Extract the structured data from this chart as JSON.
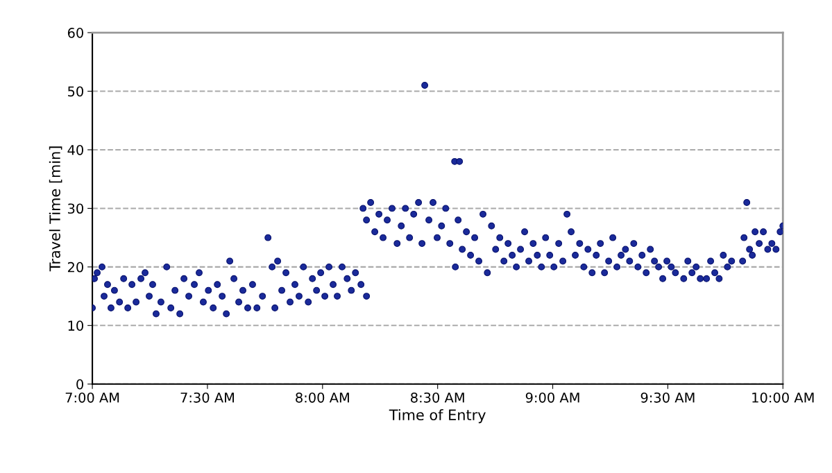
{
  "chart_data": {
    "type": "scatter",
    "xlabel": "Time of Entry",
    "ylabel": "Travel Time [min]",
    "x": [
      7.0,
      7.009,
      7.021,
      7.042,
      7.051,
      7.066,
      7.081,
      7.096,
      7.118,
      7.136,
      7.154,
      7.172,
      7.19,
      7.211,
      7.229,
      7.247,
      7.262,
      7.277,
      7.298,
      7.323,
      7.341,
      7.359,
      7.38,
      7.398,
      7.419,
      7.443,
      7.464,
      7.482,
      7.504,
      7.525,
      7.543,
      7.564,
      7.582,
      7.597,
      7.615,
      7.636,
      7.654,
      7.675,
      7.696,
      7.715,
      7.739,
      7.763,
      7.781,
      7.793,
      7.805,
      7.823,
      7.841,
      7.859,
      7.88,
      7.898,
      7.917,
      7.938,
      7.956,
      7.974,
      7.992,
      8.01,
      8.028,
      8.046,
      8.064,
      8.085,
      8.107,
      8.125,
      8.143,
      8.167,
      8.191,
      8.176,
      8.191,
      8.209,
      8.227,
      8.245,
      8.263,
      8.281,
      8.302,
      8.324,
      8.342,
      8.36,
      8.378,
      8.396,
      8.417,
      8.432,
      8.444,
      8.462,
      8.48,
      8.498,
      8.517,
      8.535,
      8.553,
      8.574,
      8.577,
      8.589,
      8.595,
      8.607,
      8.625,
      8.643,
      8.661,
      8.679,
      8.697,
      8.716,
      8.734,
      8.752,
      8.77,
      8.788,
      8.806,
      8.824,
      8.842,
      8.86,
      8.878,
      8.896,
      8.915,
      8.933,
      8.951,
      8.969,
      8.987,
      9.005,
      9.026,
      9.044,
      9.062,
      9.08,
      9.098,
      9.117,
      9.135,
      9.153,
      9.171,
      9.189,
      9.207,
      9.225,
      9.243,
      9.261,
      9.279,
      9.297,
      9.316,
      9.334,
      9.352,
      9.37,
      9.388,
      9.406,
      9.424,
      9.442,
      9.46,
      9.478,
      9.496,
      9.515,
      9.533,
      9.569,
      9.587,
      9.605,
      9.623,
      9.641,
      9.668,
      9.686,
      9.704,
      9.723,
      9.741,
      9.759,
      9.777,
      9.825,
      9.831,
      9.843,
      9.855,
      9.867,
      9.879,
      9.897,
      9.915,
      9.934,
      9.952,
      9.97,
      9.988,
      10.0
    ],
    "series": [
      {
        "color": "#1a2a9a",
        "values": [
          13,
          18,
          19,
          20,
          15,
          17,
          13,
          16,
          14,
          18,
          13,
          17,
          14,
          18,
          19,
          15,
          17,
          12,
          14,
          20,
          13,
          16,
          12,
          18,
          15,
          17,
          19,
          14,
          16,
          13,
          17,
          15,
          12,
          21,
          18,
          14,
          16,
          13,
          17,
          13,
          15,
          25,
          20,
          13,
          21,
          16,
          19,
          14,
          17,
          15,
          20,
          14,
          18,
          16,
          19,
          15,
          20,
          17,
          15,
          20,
          18,
          16,
          19,
          17,
          15,
          30,
          28,
          31,
          26,
          29,
          25,
          28,
          30,
          24,
          27,
          30,
          25,
          29,
          31,
          24,
          51,
          28,
          31,
          25,
          27,
          30,
          24,
          38,
          20,
          28,
          38,
          23,
          26,
          22,
          25,
          21,
          29,
          19,
          27,
          23,
          25,
          21,
          24,
          22,
          20,
          23,
          26,
          21,
          24,
          22,
          20,
          25,
          22,
          20,
          24,
          21,
          29,
          26,
          22,
          24,
          20,
          23,
          19,
          22,
          24,
          19,
          21,
          25,
          20,
          22,
          23,
          21,
          24,
          20,
          22,
          19,
          23,
          21,
          20,
          18,
          21,
          20,
          19,
          18,
          21,
          19,
          20,
          18,
          18,
          21,
          19,
          18,
          22,
          20,
          21,
          21,
          25,
          31,
          23,
          22,
          26,
          24,
          26,
          23,
          24,
          23,
          26,
          27
        ]
      }
    ],
    "xlim": [
      7,
      10
    ],
    "xticks": [
      {
        "value": 7,
        "label": "7:00 AM"
      },
      {
        "value": 7.5,
        "label": "7:30 AM"
      },
      {
        "value": 8,
        "label": "8:00 AM"
      },
      {
        "value": 8.5,
        "label": "8:30 AM"
      },
      {
        "value": 9,
        "label": "9:00 AM"
      },
      {
        "value": 9.5,
        "label": "9:30 AM"
      },
      {
        "value": 10,
        "label": "10:00 AM"
      }
    ],
    "ylim": [
      0,
      60
    ],
    "yticks": [
      0,
      10,
      20,
      30,
      40,
      50,
      60
    ],
    "grid": "y",
    "marker": "circle"
  }
}
